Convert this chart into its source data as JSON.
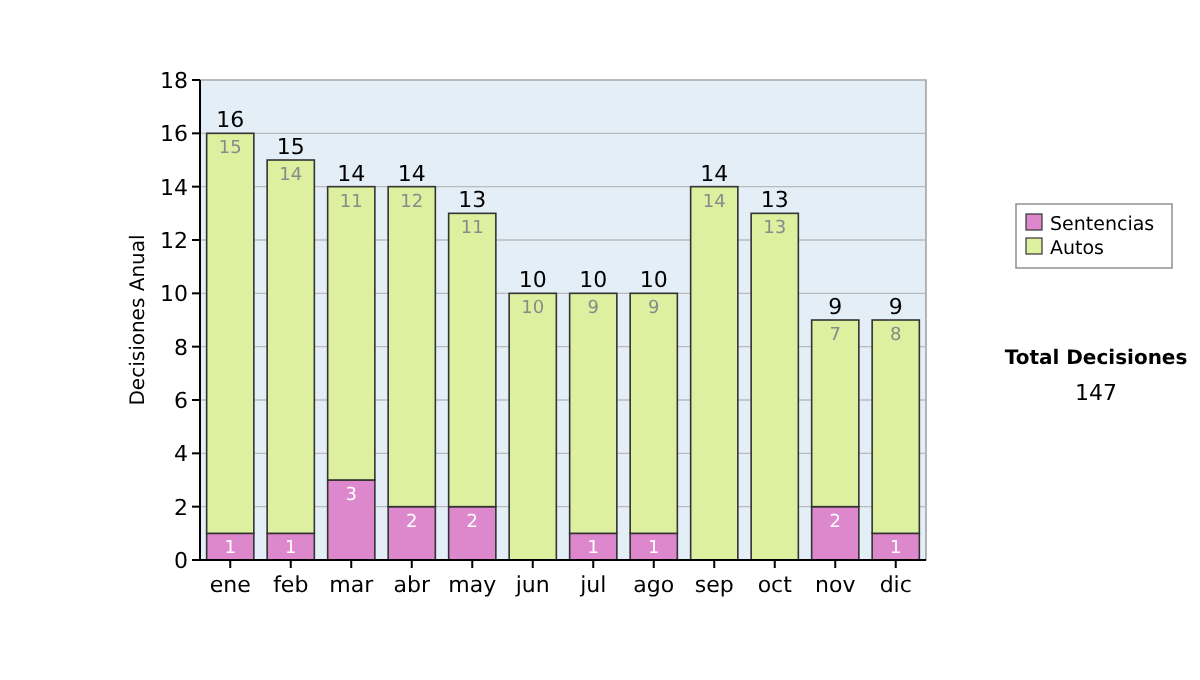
{
  "chart_data": {
    "type": "bar",
    "stacked": true,
    "ylabel": "Decisiones Anual",
    "categories": [
      "ene",
      "feb",
      "mar",
      "abr",
      "may",
      "jun",
      "jul",
      "ago",
      "sep",
      "oct",
      "nov",
      "dic"
    ],
    "series": [
      {
        "name": "Sentencias",
        "color": "#dd88cc",
        "values": [
          1,
          1,
          3,
          2,
          2,
          0,
          1,
          1,
          0,
          0,
          2,
          1
        ],
        "value_labels": [
          "1",
          "1",
          "3",
          "2",
          "2",
          null,
          "1",
          "1",
          null,
          null,
          "2",
          "1"
        ]
      },
      {
        "name": "Autos",
        "color": "#ddf0a0",
        "values": [
          15,
          14,
          11,
          12,
          11,
          10,
          9,
          9,
          14,
          13,
          7,
          8
        ],
        "value_labels": [
          "15",
          "14",
          "11",
          "12",
          "11",
          "10",
          "9",
          "9",
          "14",
          "13",
          "7",
          "8"
        ]
      }
    ],
    "totals": [
      "16",
      "15",
      "14",
      "14",
      "13",
      "10",
      "10",
      "10",
      "14",
      "13",
      "9",
      "9"
    ],
    "ylim": [
      0,
      18
    ],
    "yticks": [
      0,
      2,
      4,
      6,
      8,
      10,
      12,
      14,
      16,
      18
    ],
    "grid": "y",
    "legend": "right",
    "annotations": [
      "Total Decisiones",
      "147"
    ]
  }
}
